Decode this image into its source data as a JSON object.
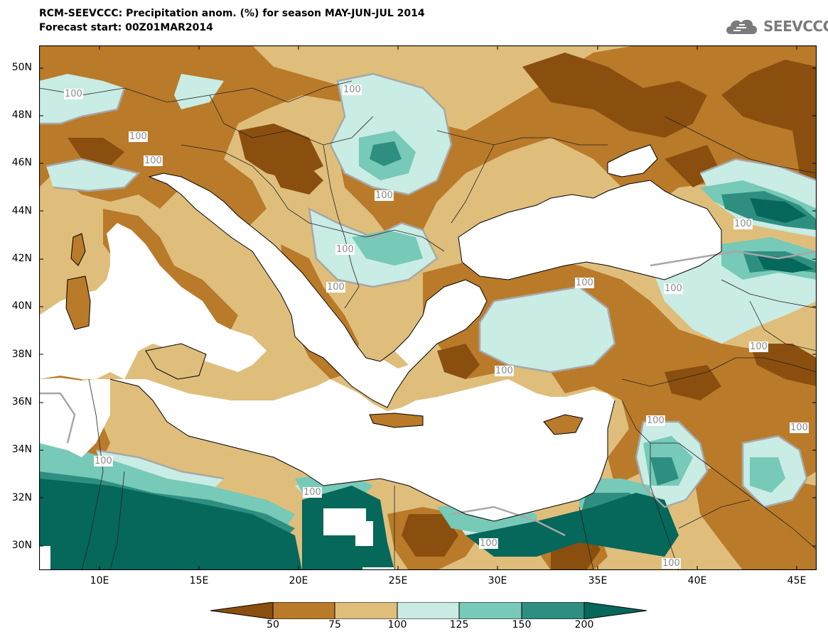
{
  "title": {
    "line1": "RCM-SEEVCCC: Precipitation anom. (%) for season MAY-JUN-JUL 2014",
    "line2": "Forecast start: 00Z01MAR2014"
  },
  "logo": {
    "text": "SEEVCCC",
    "icon": "cloud-icon"
  },
  "map": {
    "variable": "Precipitation anomaly (%)",
    "lat_range": [
      29,
      51
    ],
    "lon_range": [
      7,
      46
    ],
    "lat_ticks": [
      "50N",
      "48N",
      "46N",
      "44N",
      "42N",
      "40N",
      "38N",
      "36N",
      "34N",
      "32N",
      "30N"
    ],
    "lon_ticks": [
      "10E",
      "15E",
      "20E",
      "25E",
      "30E",
      "35E",
      "40E",
      "45E"
    ],
    "contour_labels": [
      "100",
      "100",
      "100",
      "100",
      "100",
      "100",
      "100",
      "100",
      "100",
      "100",
      "100",
      "100",
      "100",
      "100",
      "100",
      "100",
      "100",
      "100"
    ]
  },
  "colors": {
    "below_50": "#8a4f0e",
    "c50_75": "#b97a2a",
    "c75_100": "#dfbe7c",
    "c100_125": "#c9ece4",
    "c125_150": "#77c9b8",
    "c150_200": "#2e8f80",
    "above_200": "#06675b",
    "sea": "#ffffff",
    "contour": "#a7a7a7"
  },
  "legend": {
    "labels": [
      "50",
      "75",
      "100",
      "125",
      "150",
      "200"
    ]
  }
}
